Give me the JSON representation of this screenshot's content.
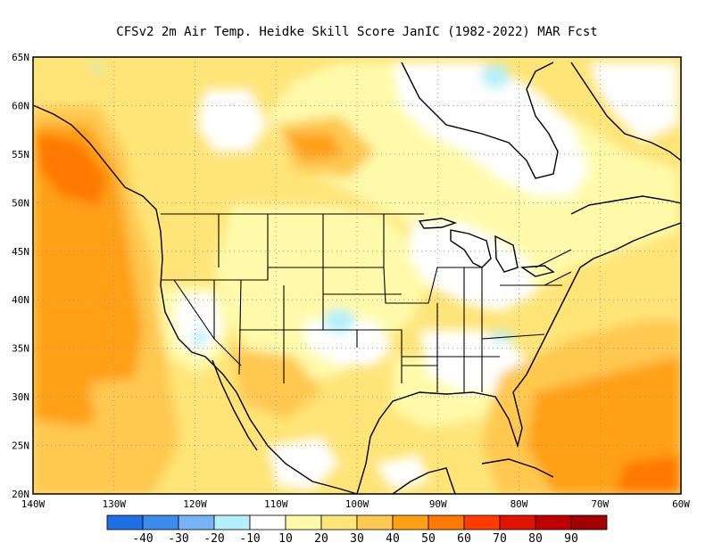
{
  "title": "CFSv2  2m Air Temp. Heidke Skill Score JanIC (1982-2022) MAR Fcst",
  "map": {
    "lon_range": [
      -140,
      -60
    ],
    "lat_range": [
      20,
      65
    ],
    "x_ticks": [
      "140W",
      "130W",
      "120W",
      "110W",
      "100W",
      "90W",
      "80W",
      "70W",
      "60W"
    ],
    "y_ticks": [
      "65N",
      "60N",
      "55N",
      "50N",
      "45N",
      "40N",
      "35N",
      "30N",
      "25N",
      "20N"
    ],
    "grid": "dotted"
  },
  "colorbar": {
    "colors": [
      "#1e6ee6",
      "#3c8cf0",
      "#78b4f5",
      "#b4f0fa",
      "#ffffff",
      "#fffaaa",
      "#ffe478",
      "#ffc850",
      "#ffa014",
      "#ff7800",
      "#ff3c00",
      "#e11400",
      "#c00000",
      "#a50000"
    ],
    "labels": [
      "-40",
      "-30",
      "-20",
      "-10",
      "10",
      "20",
      "30",
      "40",
      "50",
      "60",
      "70",
      "80",
      "90"
    ]
  },
  "field_colors": {
    "white": "#ffffff",
    "light_yellow": "#fffaaa",
    "yellow": "#ffe478",
    "gold": "#ffc850",
    "orange": "#ffa014",
    "dark_orange": "#ff7800",
    "light_blue": "#b4f0fa"
  }
}
